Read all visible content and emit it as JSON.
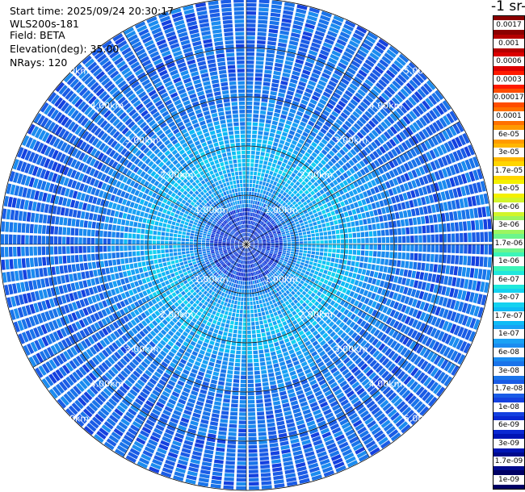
{
  "info": {
    "start_time": "Start time: 2025/09/24 20:30:17",
    "instrument": "WLS200s-181",
    "field": "Field: BETA",
    "elevation": "Elevation(deg): 35.00",
    "nrays": "NRays: 120"
  },
  "colorbar": {
    "title": "-1 sr-",
    "labels": [
      "0.0017",
      "0.001",
      "0.0006",
      "0.0003",
      "0.00017",
      "0.0001",
      "6e-05",
      "3e-05",
      "1.7e-05",
      "1e-05",
      "6e-06",
      "3e-06",
      "1.7e-06",
      "1e-06",
      "6e-07",
      "3e-07",
      "1.7e-07",
      "1e-07",
      "6e-08",
      "3e-08",
      "1.7e-08",
      "1e-08",
      "6e-09",
      "3e-09",
      "1.7e-09",
      "1e-09"
    ],
    "colors": [
      "#8b0000",
      "#b50000",
      "#dc0000",
      "#ff1a00",
      "#ff4d00",
      "#ff7000",
      "#ff9a00",
      "#ffb600",
      "#ffd500",
      "#f4f000",
      "#d2f52a",
      "#9cf55f",
      "#6cf58c",
      "#3cf5b8",
      "#20e8dc",
      "#14d2f0",
      "#0fbbf5",
      "#1aa2f5",
      "#1b8cf0",
      "#1a74ea",
      "#1a5ce6",
      "#1441e0",
      "#0a28d2",
      "#0014b4",
      "#000a8c",
      "#000064"
    ]
  },
  "chart_data": {
    "type": "heatmap",
    "projection": "polar-ppi",
    "rays": 120,
    "range_rings_km": [
      1,
      2,
      3,
      4,
      5
    ],
    "ring_label_text": [
      "1.00km",
      "2.00km",
      "3.00km",
      "4.00km",
      "5.00km"
    ],
    "max_range_km": 5.0,
    "field": "BETA",
    "elevation_deg": 35.0,
    "color_scale": "log",
    "value_range": [
      1e-09,
      0.0017
    ],
    "typical_value": 3e-08,
    "near_range_value": 1.7e-07
  }
}
